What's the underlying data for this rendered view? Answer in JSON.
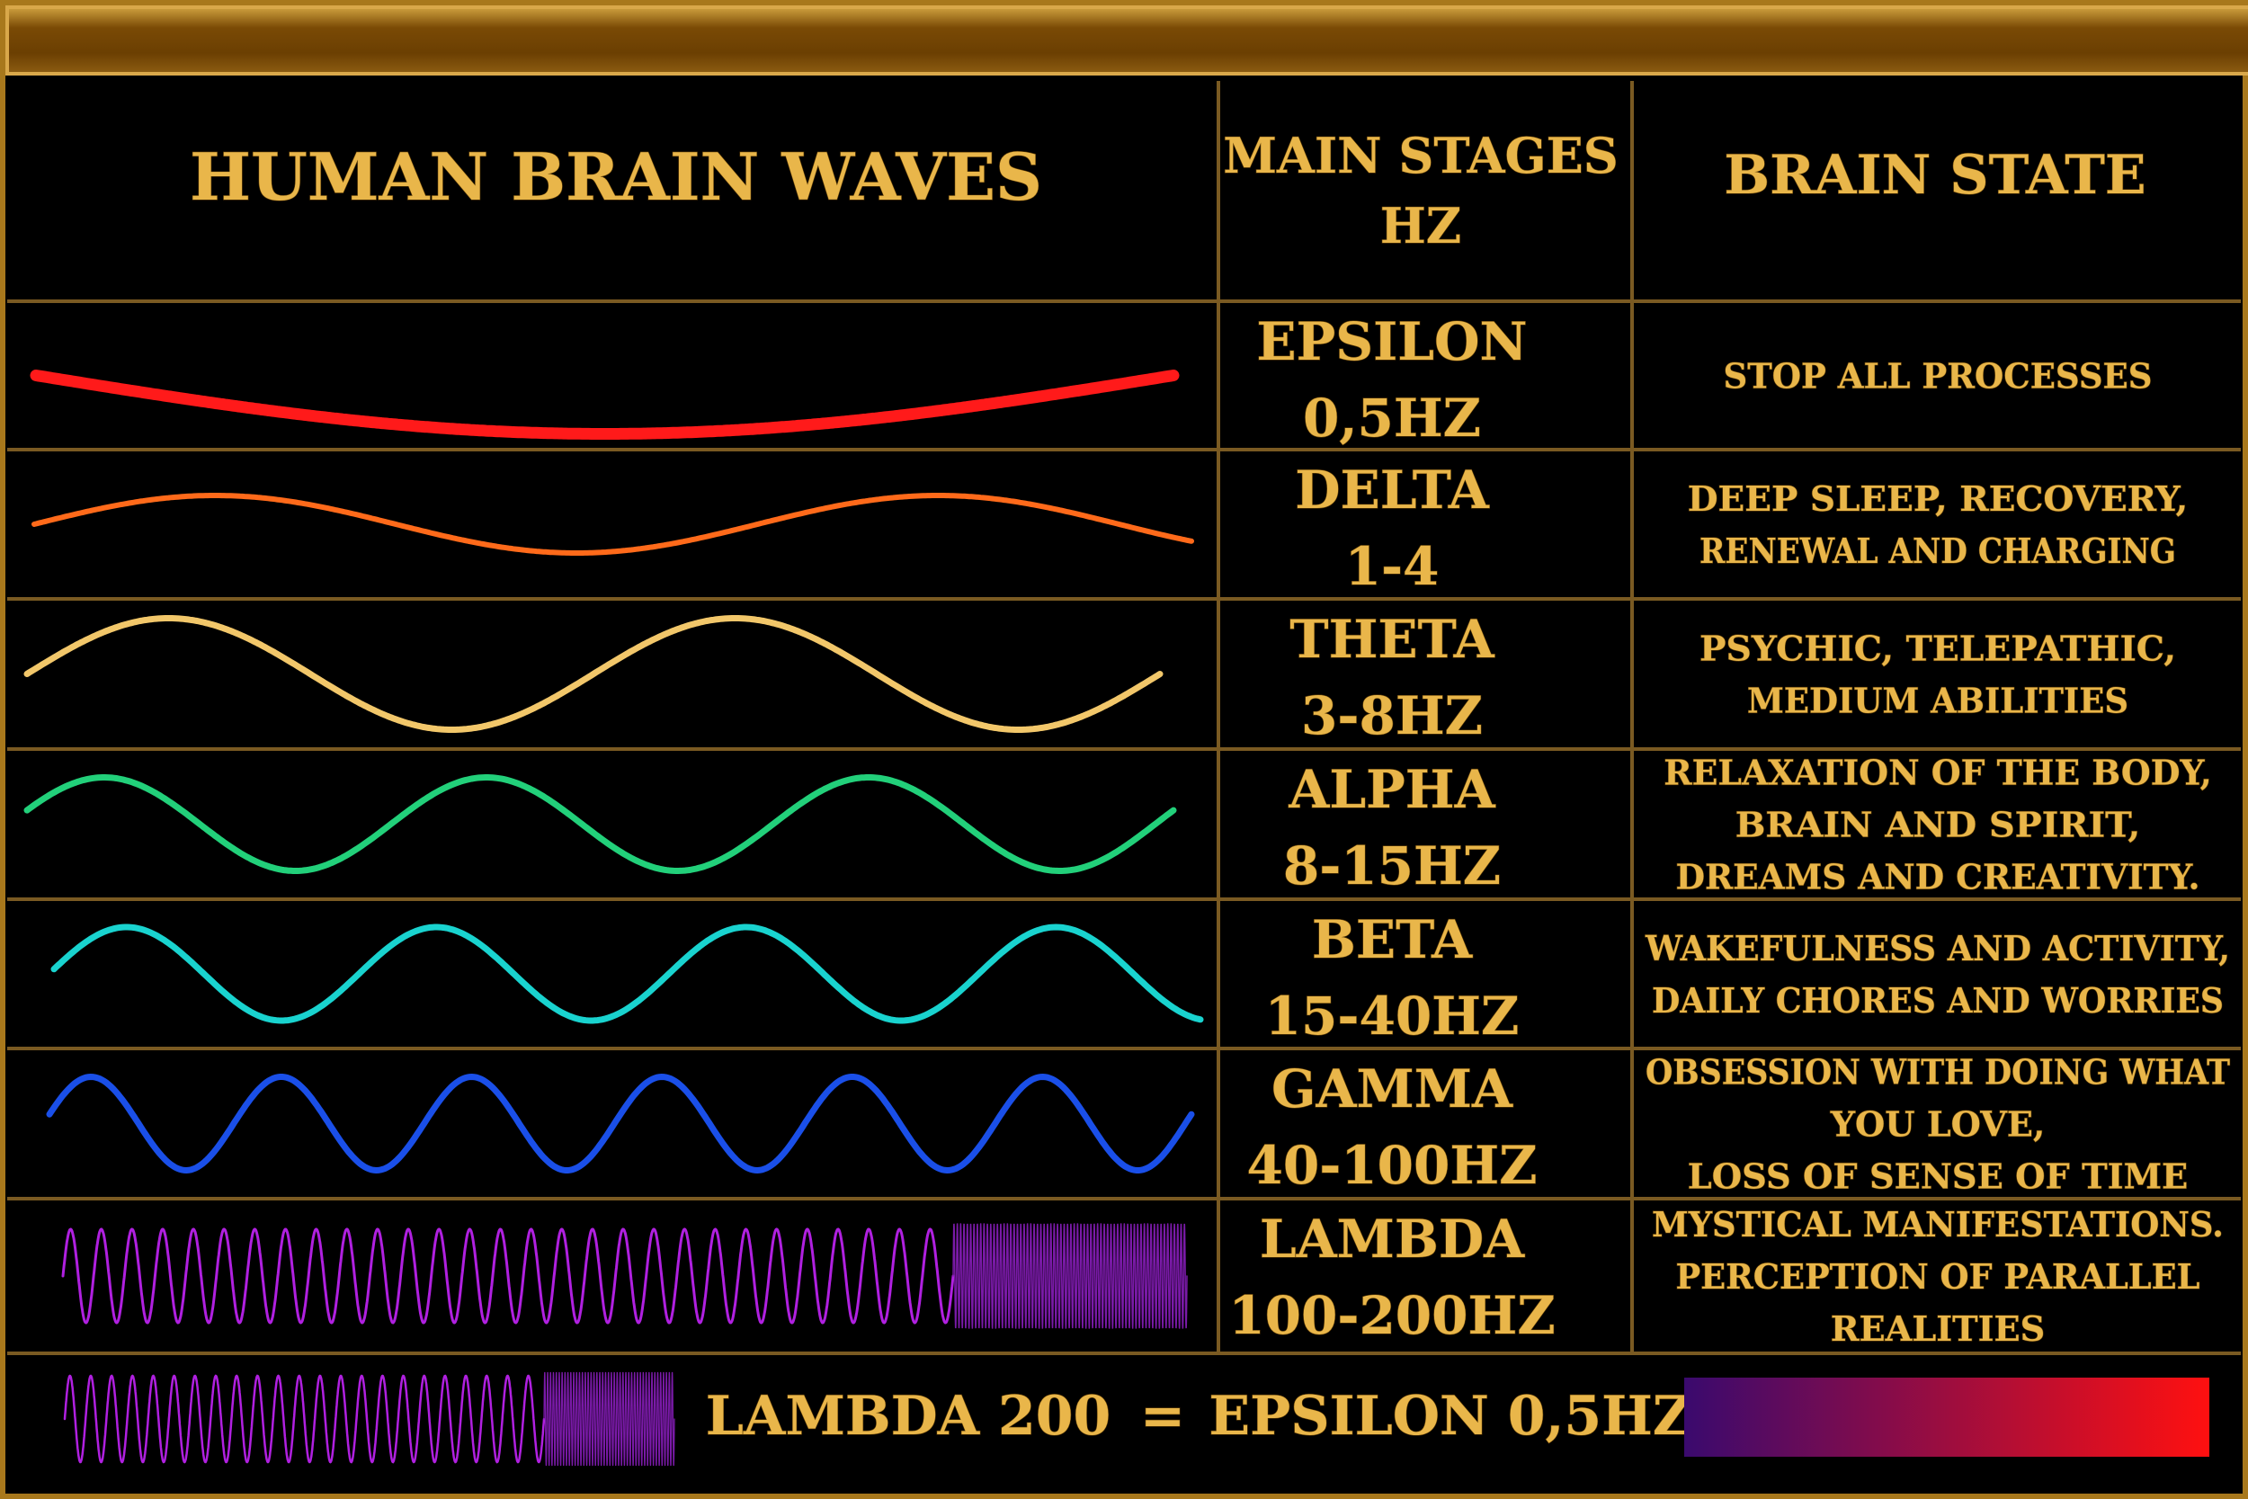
{
  "header": {
    "title": "HUMAN BRAIN WAVES",
    "stages_title": [
      "MAIN STAGES",
      "HZ"
    ],
    "state_title": "BRAIN STATE"
  },
  "rows": [
    {
      "name": "EPSILON",
      "hz": "0,5HZ",
      "state": [
        "STOP ALL PROCESSES"
      ],
      "color": "#ff1a1a"
    },
    {
      "name": "DELTA",
      "hz": "1-4",
      "state": [
        "DEEP SLEEP, RECOVERY,",
        "RENEWAL AND CHARGING"
      ],
      "color": "#ff6a1a"
    },
    {
      "name": "THETA",
      "hz": "3-8HZ",
      "state": [
        "PSYCHIC, TELEPATHIC,",
        "MEDIUM ABILITIES"
      ],
      "color": "#f2c76a"
    },
    {
      "name": "ALPHA",
      "hz": "8-15HZ",
      "state": [
        "RELAXATION OF THE BODY,",
        "BRAIN AND SPIRIT,",
        "DREAMS AND CREATIVITY."
      ],
      "color": "#22d07a"
    },
    {
      "name": "BETA",
      "hz": "15-40HZ",
      "state": [
        "WAKEFULNESS AND ACTIVITY,",
        "DAILY CHORES AND WORRIES"
      ],
      "color": "#19d3cf"
    },
    {
      "name": "GAMMA",
      "hz": "40-100HZ",
      "state": [
        "OBSESSION WITH DOING WHAT",
        "YOU LOVE,",
        "LOSS OF SENSE OF TIME"
      ],
      "color": "#1a4fe8"
    },
    {
      "name": "LAMBDA",
      "hz": "100-200HZ",
      "state": [
        "MYSTICAL MANIFESTATIONS.",
        "PERCEPTION OF PARALLEL",
        "REALITIES"
      ],
      "color": "#b020e0"
    }
  ],
  "footer": {
    "left": "LAMBDA 200",
    "equals": "=",
    "right": "EPSILON 0,5HZ",
    "gradient_from": "#3a0a6e",
    "gradient_to": "#ff1010"
  },
  "colors": {
    "gold_text": "#e9b64a",
    "grid_line": "#7a5a22",
    "bar_top": "#7a4a05",
    "background": "#000000"
  }
}
